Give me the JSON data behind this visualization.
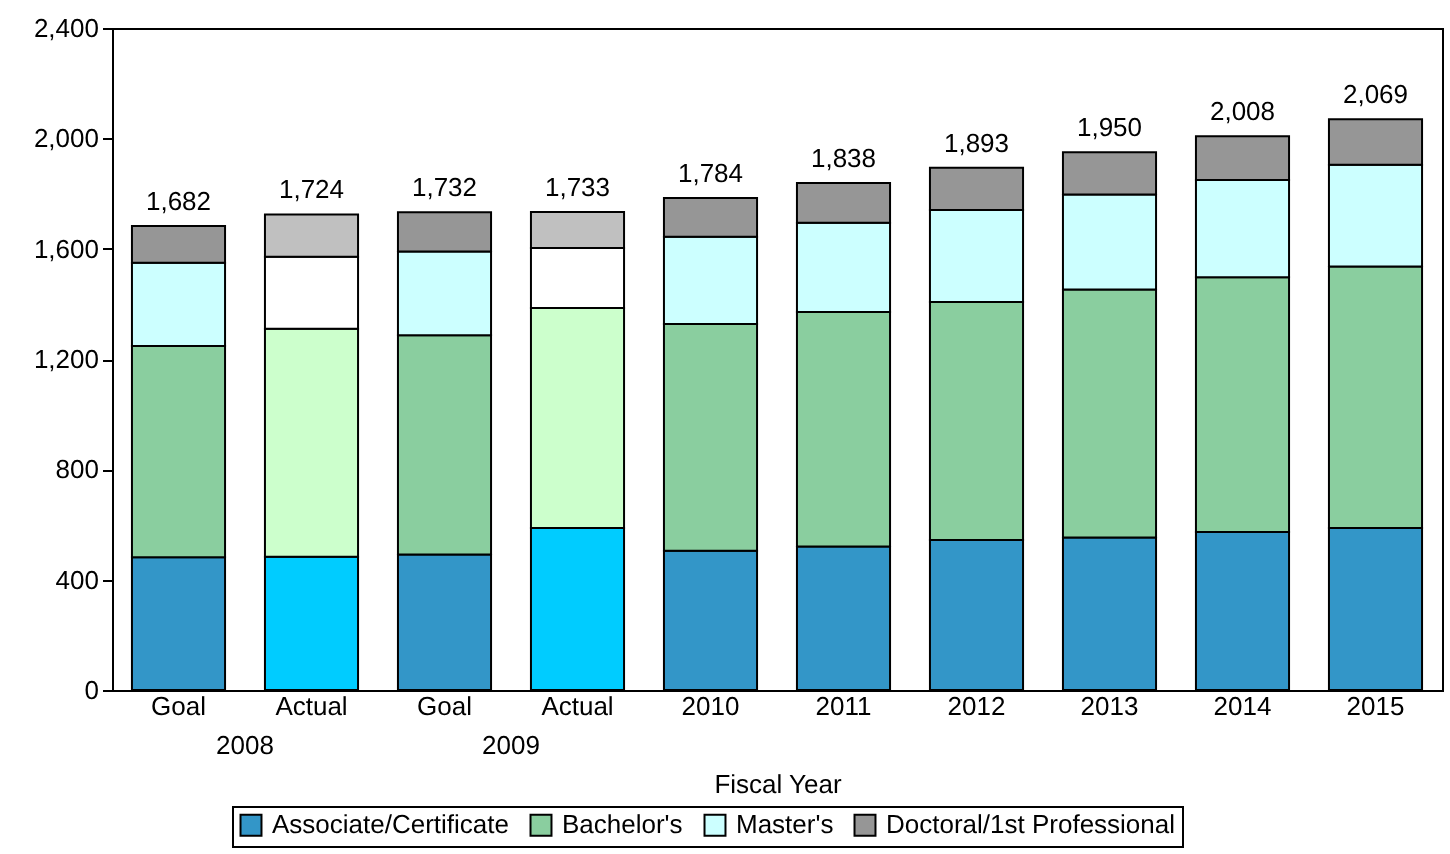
{
  "chart_data": {
    "type": "bar",
    "stacked": true,
    "xlabel": "Fiscal Year",
    "categories": [
      "Goal",
      "Actual",
      "Goal",
      "Actual",
      "2010",
      "2011",
      "2012",
      "2013",
      "2014",
      "2015"
    ],
    "series": [
      {
        "name": "Associate/Certificate",
        "color": "#3396c8",
        "colors": [
          "#3396c8",
          "#00ccff",
          "#3396c8",
          "#00ccff",
          "#3396c8",
          "#3396c8",
          "#3396c8",
          "#3396c8",
          "#3396c8",
          "#3396c8"
        ],
        "values": [
          481,
          483,
          491,
          587,
          505,
          520,
          544,
          553,
          573,
          587
        ]
      },
      {
        "name": "Bachelor's",
        "color": "#8ace9f",
        "colors": [
          "#8ace9f",
          "#ccffcc",
          "#8ace9f",
          "#ccffcc",
          "#8ace9f",
          "#8ace9f",
          "#8ace9f",
          "#8ace9f",
          "#8ace9f",
          "#8ace9f"
        ],
        "values": [
          766,
          827,
          795,
          798,
          822,
          850,
          863,
          899,
          923,
          948
        ]
      },
      {
        "name": "Master's",
        "color": "#ccffff",
        "colors": [
          "#ccffff",
          "#ffffff",
          "#ccffff",
          "#ffffff",
          "#ccffff",
          "#ccffff",
          "#ccffff",
          "#ccffff",
          "#ccffff",
          "#ccffff"
        ],
        "values": [
          302,
          261,
          304,
          217,
          316,
          324,
          333,
          344,
          353,
          369
        ]
      },
      {
        "name": "Doctoral/1st Professional",
        "color": "#969696",
        "colors": [
          "#969696",
          "#c0c0c0",
          "#969696",
          "#c0c0c0",
          "#969696",
          "#969696",
          "#969696",
          "#969696",
          "#969696",
          "#969696"
        ],
        "values": [
          133,
          153,
          142,
          131,
          141,
          144,
          153,
          154,
          159,
          165
        ]
      }
    ],
    "totals": [
      "1,682",
      "1,724",
      "1,732",
      "1,733",
      "1,784",
      "1,838",
      "1,893",
      "1,950",
      "2,008",
      "2,069"
    ],
    "annotations": [
      "2008",
      "2009"
    ],
    "ylim": [
      0,
      2400
    ],
    "yticks": [
      0,
      400,
      800,
      {
        "value": 1200,
        "label": "1,200"
      },
      {
        "value": 1600,
        "label": "1,600"
      },
      {
        "value": 2000,
        "label": "2,000"
      },
      {
        "value": 2400,
        "label": "2,400"
      }
    ],
    "grid": false,
    "legend": "bottom"
  }
}
